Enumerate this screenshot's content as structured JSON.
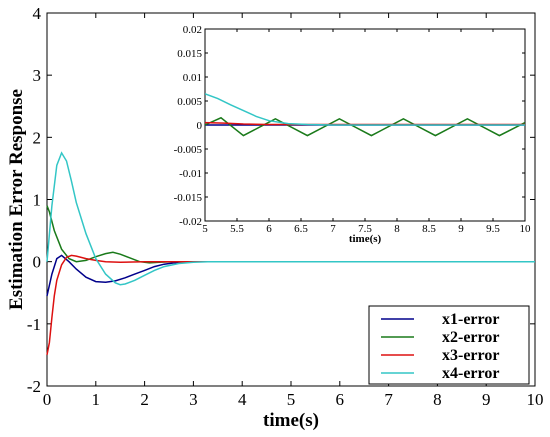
{
  "chart_data": [
    {
      "type": "line",
      "title": "",
      "xlabel": "time(s)",
      "ylabel": "Estimation Error Response",
      "xlim": [
        0,
        10
      ],
      "ylim": [
        -2,
        4
      ],
      "x_ticks": [
        "0",
        "1",
        "2",
        "3",
        "4",
        "5",
        "6",
        "7",
        "8",
        "9",
        "10"
      ],
      "y_ticks": [
        "-2",
        "-1",
        "0",
        "1",
        "2",
        "3",
        "4"
      ],
      "legend_position": "bottom-right",
      "series": [
        {
          "name": "x1-error",
          "color": "#00008b",
          "x": [
            0,
            0.1,
            0.2,
            0.3,
            0.45,
            0.6,
            0.8,
            1.0,
            1.2,
            1.4,
            1.6,
            1.8,
            2.0,
            2.2,
            2.4,
            2.6,
            2.8,
            3.0,
            3.2,
            3.5,
            10
          ],
          "y": [
            -0.55,
            -0.2,
            0.05,
            0.1,
            0.0,
            -0.12,
            -0.25,
            -0.32,
            -0.33,
            -0.31,
            -0.26,
            -0.2,
            -0.14,
            -0.08,
            -0.04,
            -0.02,
            -0.01,
            0.0,
            0.0,
            0.0,
            0.0
          ]
        },
        {
          "name": "x2-error",
          "color": "#1a7a1a",
          "x": [
            0,
            0.05,
            0.15,
            0.3,
            0.45,
            0.6,
            0.8,
            1.0,
            1.2,
            1.35,
            1.5,
            1.7,
            1.9,
            2.1,
            2.3,
            2.6,
            3.0,
            3.5,
            10
          ],
          "y": [
            0.9,
            0.8,
            0.5,
            0.2,
            0.05,
            0.0,
            0.02,
            0.08,
            0.13,
            0.15,
            0.12,
            0.06,
            0.0,
            -0.02,
            -0.01,
            0.0,
            0.0,
            0.0,
            0.0
          ],
          "inset_x": [
            5,
            5.25,
            5.6,
            6.1,
            6.6,
            7.1,
            7.6,
            8.1,
            8.6,
            9.1,
            9.6,
            10
          ],
          "inset_y": [
            0.0,
            0.0015,
            -0.0022,
            0.0013,
            -0.0022,
            0.0013,
            -0.0022,
            0.0013,
            -0.0022,
            0.0013,
            -0.0022,
            0.0005
          ]
        },
        {
          "name": "x3-error",
          "color": "#dd1010",
          "x": [
            0,
            0.05,
            0.1,
            0.15,
            0.2,
            0.3,
            0.4,
            0.5,
            0.6,
            0.8,
            1.0,
            1.2,
            1.5,
            2.0,
            2.5,
            3.0,
            3.5,
            10
          ],
          "y": [
            -1.5,
            -1.3,
            -0.9,
            -0.55,
            -0.3,
            -0.05,
            0.07,
            0.1,
            0.09,
            0.05,
            0.02,
            0.0,
            -0.01,
            0.0,
            0.0,
            0.0,
            0.0,
            0.0
          ],
          "inset_x": [
            5,
            5.3,
            5.6,
            6.0,
            6.5,
            7.0,
            7.5,
            8.0,
            8.5,
            9.0,
            9.5,
            10
          ],
          "inset_y": [
            0.0005,
            0.0004,
            0.0002,
            0.0001,
            0.0001,
            0.0001,
            0.0001,
            0.0001,
            0.0001,
            0.0001,
            0.0001,
            0.0001
          ]
        },
        {
          "name": "x4-error",
          "color": "#33c6c6",
          "x": [
            0,
            0.1,
            0.2,
            0.3,
            0.4,
            0.5,
            0.6,
            0.8,
            1.0,
            1.2,
            1.4,
            1.5,
            1.6,
            1.8,
            2.0,
            2.2,
            2.4,
            2.7,
            3.0,
            3.3,
            3.6,
            10
          ],
          "y": [
            0.0,
            0.9,
            1.55,
            1.75,
            1.62,
            1.3,
            0.95,
            0.45,
            0.05,
            -0.2,
            -0.34,
            -0.37,
            -0.36,
            -0.3,
            -0.22,
            -0.14,
            -0.08,
            -0.03,
            -0.01,
            0.0,
            0.0,
            0.0
          ],
          "inset_x": [
            5,
            5.2,
            5.4,
            5.6,
            5.8,
            6.0,
            6.3,
            6.6,
            7.0,
            10
          ],
          "inset_y": [
            0.0065,
            0.0055,
            0.0042,
            0.003,
            0.0018,
            0.0009,
            0.0003,
            0.0001,
            0.0,
            0.0
          ]
        }
      ]
    },
    {
      "type": "line",
      "title": "",
      "xlabel": "time(s)",
      "ylabel": "",
      "xlim": [
        5,
        10
      ],
      "ylim": [
        -0.02,
        0.02
      ],
      "x_ticks": [
        "5",
        "5.5",
        "6",
        "6.5",
        "7",
        "7.5",
        "8",
        "8.5",
        "9",
        "9.5",
        "10"
      ],
      "y_ticks": [
        "-0.02",
        "-0.015",
        "-0.01",
        "-0.005",
        "0",
        "0.005",
        "0.01",
        "0.015",
        "0.02"
      ],
      "inset_of": 0,
      "legend_position": "none"
    }
  ]
}
